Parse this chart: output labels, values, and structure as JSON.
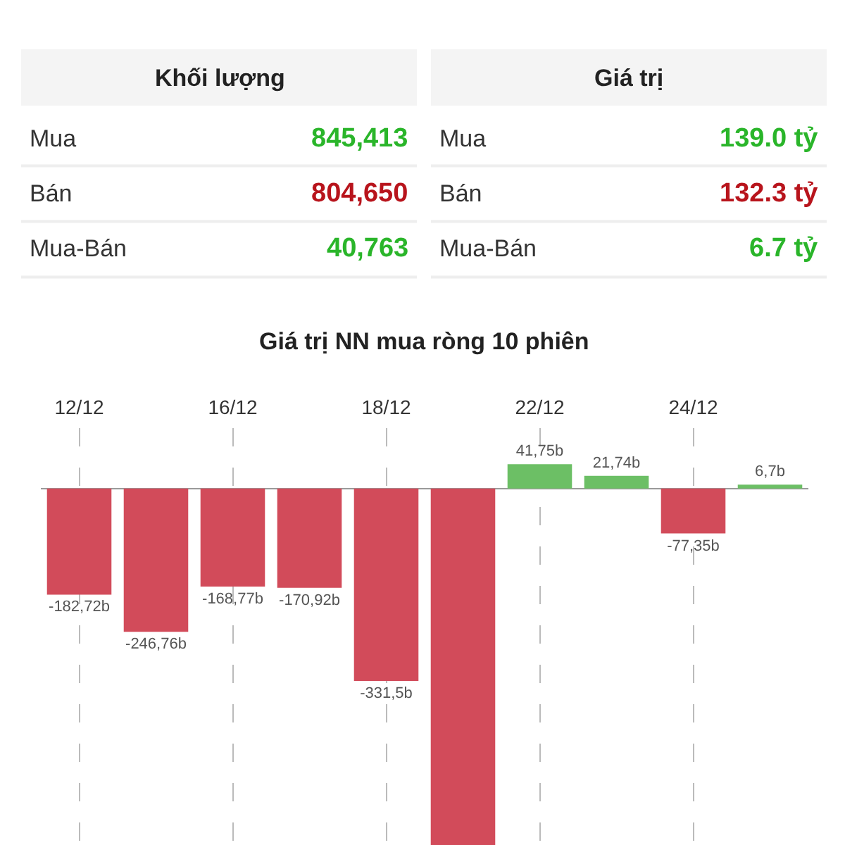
{
  "chart_data": [
    {
      "type": "other",
      "title": "Khối lượng",
      "categories": [
        "Mua",
        "Bán",
        "Mua-Bán"
      ],
      "value_labels": [
        "845,413",
        "804,650",
        "40,763"
      ],
      "colors": [
        "#2ab52a",
        "#b8141c",
        "#2ab52a"
      ]
    },
    {
      "type": "other",
      "title": "Giá trị",
      "categories": [
        "Mua",
        "Bán",
        "Mua-Bán"
      ],
      "value_labels": [
        "139.0 tỷ",
        "132.3 tỷ",
        "6.7 tỷ"
      ],
      "colors": [
        "#2ab52a",
        "#b8141c",
        "#2ab52a"
      ]
    },
    {
      "type": "bar",
      "title": "Giá trị NN mua ròng 10 phiên",
      "categories": [
        "12/12",
        null,
        "16/12",
        null,
        "18/12",
        null,
        "22/12",
        null,
        "24/12",
        null
      ],
      "values": [
        -182.72,
        -246.76,
        -168.77,
        -170.92,
        -331.5,
        -614,
        41.75,
        21.74,
        -77.35,
        6.7
      ],
      "colors": [
        "#d24b5a",
        "#d24b5a",
        "#d24b5a",
        "#d24b5a",
        "#d24b5a",
        "#d24b5a",
        "#6cbf65",
        "#6cbf65",
        "#d24b5a",
        "#6cbf65"
      ],
      "value_labels": [
        "-182,72b",
        "-246,76b",
        "-168,77b",
        "-170,92b",
        "-331,5b",
        null,
        "41,75b",
        "21,74b",
        "-77,35b",
        "6,7b"
      ],
      "ylim": [
        -614,
        104
      ],
      "grid": "x",
      "tick_labels": "x"
    }
  ]
}
